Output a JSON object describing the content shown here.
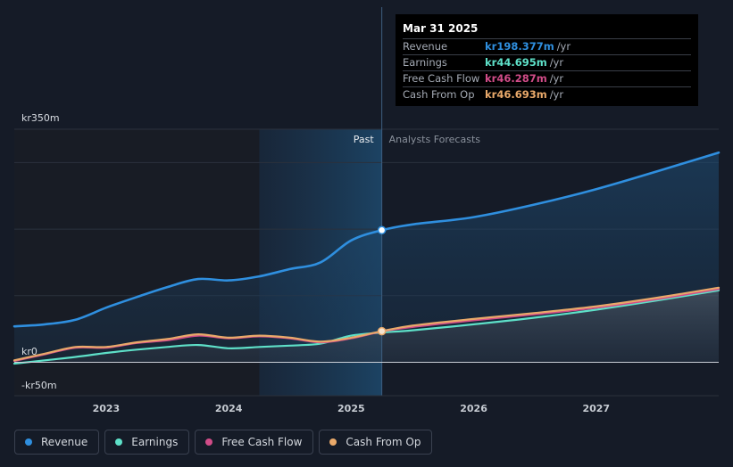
{
  "chart_data": {
    "type": "line",
    "title": "",
    "y_label_top": "kr350m",
    "y_label_zero": "kr0",
    "y_label_bottom": "-kr50m",
    "ylim": [
      -50,
      350
    ],
    "xlim": [
      2022.25,
      2028.0
    ],
    "x_ticks": [
      2023,
      2024,
      2025,
      2026,
      2027
    ],
    "x_tick_labels": [
      "2023",
      "2024",
      "2025",
      "2026",
      "2027"
    ],
    "past_region_start": 2024.25,
    "divider_x": 2025.25,
    "past_label": "Past",
    "forecast_label": "Analysts Forecasts",
    "series": [
      {
        "name": "Revenue",
        "color": "#2f8fdf",
        "points": [
          [
            2022.25,
            54
          ],
          [
            2022.5,
            57
          ],
          [
            2022.75,
            64
          ],
          [
            2023.0,
            82
          ],
          [
            2023.25,
            98
          ],
          [
            2023.5,
            113
          ],
          [
            2023.75,
            125
          ],
          [
            2024.0,
            123
          ],
          [
            2024.25,
            129
          ],
          [
            2024.5,
            140
          ],
          [
            2024.75,
            150
          ],
          [
            2025.0,
            183
          ],
          [
            2025.25,
            198.4
          ],
          [
            2025.5,
            207
          ],
          [
            2026.0,
            218
          ],
          [
            2026.5,
            237
          ],
          [
            2027.0,
            260
          ],
          [
            2027.5,
            287
          ],
          [
            2028.0,
            315
          ]
        ]
      },
      {
        "name": "Earnings",
        "color": "#5ee0c8",
        "points": [
          [
            2022.25,
            -2
          ],
          [
            2022.5,
            3
          ],
          [
            2022.75,
            8
          ],
          [
            2023.0,
            14
          ],
          [
            2023.25,
            19
          ],
          [
            2023.5,
            23
          ],
          [
            2023.75,
            26
          ],
          [
            2024.0,
            21
          ],
          [
            2024.25,
            23
          ],
          [
            2024.5,
            25
          ],
          [
            2024.75,
            28
          ],
          [
            2025.0,
            40
          ],
          [
            2025.25,
            44.7
          ],
          [
            2025.5,
            48
          ],
          [
            2026.0,
            57
          ],
          [
            2026.5,
            67
          ],
          [
            2027.0,
            79
          ],
          [
            2027.5,
            93
          ],
          [
            2028.0,
            108
          ]
        ]
      },
      {
        "name": "Free Cash Flow",
        "color": "#d14c88",
        "points": [
          [
            2022.25,
            2
          ],
          [
            2022.5,
            12
          ],
          [
            2022.75,
            22
          ],
          [
            2023.0,
            22
          ],
          [
            2023.25,
            29
          ],
          [
            2023.5,
            33
          ],
          [
            2023.75,
            40
          ],
          [
            2024.0,
            36
          ],
          [
            2024.25,
            39
          ],
          [
            2024.5,
            36
          ],
          [
            2024.75,
            30
          ],
          [
            2025.0,
            36
          ],
          [
            2025.25,
            46.3
          ],
          [
            2025.5,
            53
          ],
          [
            2026.0,
            63
          ],
          [
            2026.5,
            72
          ],
          [
            2027.0,
            82
          ],
          [
            2027.5,
            95
          ],
          [
            2028.0,
            110
          ]
        ]
      },
      {
        "name": "Cash From Op",
        "color": "#e9a96a",
        "points": [
          [
            2022.25,
            3
          ],
          [
            2022.5,
            13
          ],
          [
            2022.75,
            23
          ],
          [
            2023.0,
            23
          ],
          [
            2023.25,
            30
          ],
          [
            2023.5,
            35
          ],
          [
            2023.75,
            42
          ],
          [
            2024.0,
            37
          ],
          [
            2024.25,
            40
          ],
          [
            2024.5,
            37
          ],
          [
            2024.75,
            31
          ],
          [
            2025.0,
            37
          ],
          [
            2025.25,
            46.7
          ],
          [
            2025.5,
            55
          ],
          [
            2026.0,
            65
          ],
          [
            2026.5,
            74
          ],
          [
            2027.0,
            84
          ],
          [
            2027.5,
            97
          ],
          [
            2028.0,
            112
          ]
        ]
      }
    ]
  },
  "legend": [
    {
      "label": "Revenue",
      "color": "#2f8fdf"
    },
    {
      "label": "Earnings",
      "color": "#5ee0c8"
    },
    {
      "label": "Free Cash Flow",
      "color": "#d14c88"
    },
    {
      "label": "Cash From Op",
      "color": "#e9a96a"
    }
  ],
  "tooltip": {
    "date": "Mar 31 2025",
    "rows": [
      {
        "label": "Revenue",
        "value": "kr198.377m",
        "unit": "/yr",
        "color": "#2f8fdf"
      },
      {
        "label": "Earnings",
        "value": "kr44.695m",
        "unit": "/yr",
        "color": "#5ee0c8"
      },
      {
        "label": "Free Cash Flow",
        "value": "kr46.287m",
        "unit": "/yr",
        "color": "#d14c88"
      },
      {
        "label": "Cash From Op",
        "value": "kr46.693m",
        "unit": "/yr",
        "color": "#e9a96a"
      }
    ]
  }
}
